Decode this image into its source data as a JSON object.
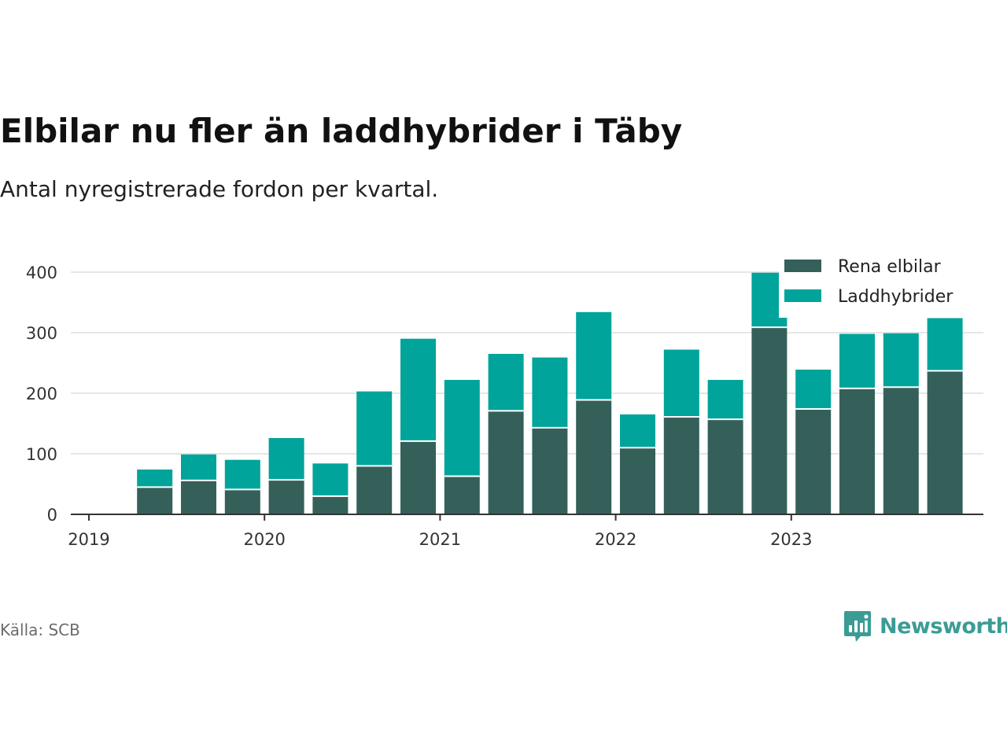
{
  "title": "Elbilar nu fler än laddhybrider i Täby",
  "subtitle": "Antal nyregistrerade fordon per kvartal.",
  "source": "Källa: SCB",
  "brand": "Newsworthy",
  "colors": {
    "rena_elbilar": "#35605a",
    "laddhybrider": "#00a49a",
    "grid": "#dddddd",
    "axis": "#333333",
    "brand": "#3a9c95"
  },
  "chart_data": {
    "type": "bar",
    "stacked": true,
    "title": "Elbilar nu fler än laddhybrider i Täby",
    "subtitle": "Antal nyregistrerade fordon per kvartal.",
    "xlabel": "",
    "ylabel": "",
    "ylim": [
      0,
      400
    ],
    "yticks": [
      0,
      100,
      200,
      300,
      400
    ],
    "xticks": [
      "2019",
      "2020",
      "2021",
      "2022",
      "2023"
    ],
    "legend_position": "top-right",
    "categories": [
      "2019 Q2",
      "2019 Q3",
      "2019 Q4",
      "2020 Q1",
      "2020 Q2",
      "2020 Q3",
      "2020 Q4",
      "2021 Q1",
      "2021 Q2",
      "2021 Q3",
      "2021 Q4",
      "2022 Q1",
      "2022 Q2",
      "2022 Q3",
      "2022 Q4",
      "2023 Q1",
      "2023 Q2",
      "2023 Q3",
      "2023 Q4"
    ],
    "series": [
      {
        "name": "Rena elbilar",
        "values": [
          45,
          56,
          41,
          57,
          30,
          80,
          121,
          63,
          171,
          143,
          189,
          110,
          161,
          157,
          309,
          174,
          208,
          210,
          237
        ]
      },
      {
        "name": "Laddhybrider",
        "values": [
          29,
          43,
          49,
          69,
          54,
          123,
          169,
          159,
          94,
          116,
          145,
          55,
          111,
          65,
          90,
          65,
          90,
          89,
          87
        ]
      }
    ]
  }
}
